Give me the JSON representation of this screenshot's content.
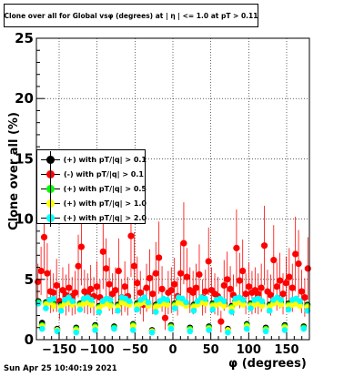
{
  "title": "Clone  over all for Global vsφ (degrees) at | η | <= 1.0 at pT > 0.11",
  "footer": "Sun Apr 25 10:40:19 2021",
  "chart_data": {
    "type": "scatter",
    "title": "Clone  over all for Global vsφ (degrees) at | η | <= 1.0 at pT > 0.11",
    "xlabel": "φ (degrees)",
    "ylabel": "Clone  over all (%)",
    "xlim": [
      -180,
      180
    ],
    "ylim": [
      0,
      25
    ],
    "xticks": [
      -150,
      -100,
      -50,
      0,
      50,
      100,
      150
    ],
    "xtick_labels": [
      "−150",
      "−100",
      "−50",
      "0",
      "50",
      "100",
      "150"
    ],
    "yticks": [
      0,
      5,
      10,
      15,
      20,
      25
    ],
    "ytick_labels": [
      "0",
      "5",
      "10",
      "15",
      "20",
      "25"
    ],
    "grid": true,
    "legend_position": "middle-left",
    "series": [
      {
        "name": "(+) with pT/|q| > 0.1",
        "color": "#000000",
        "values": [
          3.2,
          1.4,
          3.1,
          3.3,
          3.0,
          0.9,
          2.9,
          3.2,
          3.3,
          3.1,
          1.0,
          3.0,
          3.2,
          3.3,
          3.1,
          1.2,
          2.8,
          3.1,
          3.2,
          3.0,
          1.1,
          2.9,
          3.3,
          3.2,
          3.1,
          1.3,
          3.0,
          3.2,
          3.3,
          3.0,
          0.8,
          2.9,
          3.1,
          3.2,
          3.1,
          1.2,
          3.0,
          3.3,
          3.2,
          3.0,
          1.0,
          2.9,
          3.1,
          3.3,
          3.2,
          1.1,
          3.0,
          3.1,
          3.2,
          3.0,
          0.9,
          2.8,
          3.2,
          3.3,
          3.1,
          1.3,
          3.0,
          3.1,
          3.2,
          3.0,
          1.0,
          2.9,
          3.2,
          3.3,
          3.1,
          1.2,
          3.0,
          3.1,
          3.2,
          3.0,
          1.1,
          2.9
        ]
      },
      {
        "name": "(-) with pT/|q| > 0.1",
        "color": "#ff0000",
        "values": [
          4.8,
          5.7,
          8.5,
          5.5,
          4.0,
          3.9,
          4.5,
          3.2,
          4.1,
          3.7,
          4.3,
          3.6,
          3.9,
          6.1,
          7.7,
          4.0,
          3.8,
          4.2,
          3.6,
          4.4,
          3.5,
          7.3,
          5.9,
          4.6,
          3.8,
          4.1,
          5.7,
          3.5,
          4.4,
          3.6,
          8.6,
          6.1,
          4.7,
          3.9,
          2.9,
          4.3,
          5.1,
          3.8,
          5.5,
          6.8,
          4.2,
          1.8,
          3.9,
          4.1,
          4.6,
          3.6,
          5.5,
          8.0,
          5.2,
          4.1,
          3.9,
          4.3,
          5.4,
          3.5,
          4.0,
          6.5,
          4.1,
          3.8,
          3.6,
          1.5,
          4.5,
          5.0,
          4.2,
          3.7,
          7.6,
          4.9,
          5.7,
          3.8,
          4.4,
          3.9,
          4.1,
          3.8,
          4.3,
          7.8,
          4.0,
          3.7,
          6.6,
          4.4,
          4.9,
          3.8,
          4.7,
          5.2,
          4.3,
          7.1,
          6.3,
          4.0,
          3.5,
          5.9
        ]
      },
      {
        "name": "(+) with pT/|q| > 0.5",
        "color": "#00ff00",
        "values": [
          3.1,
          1.2,
          3.0,
          3.2,
          2.9,
          0.8,
          2.8,
          3.1,
          3.2,
          3.0,
          0.9,
          2.9,
          3.1,
          3.2,
          3.0,
          1.1,
          2.7,
          3.0,
          3.1,
          2.9,
          1.0,
          2.8,
          3.2,
          3.1,
          3.0,
          1.2,
          2.9,
          3.1,
          3.2,
          2.9,
          0.7,
          2.8,
          3.0,
          3.1,
          3.0,
          1.1,
          2.9,
          3.2,
          3.1,
          2.9,
          0.9,
          2.8,
          3.0,
          3.2,
          3.1,
          1.0,
          2.9,
          3.0,
          3.1,
          2.9,
          0.8,
          2.7,
          3.1,
          3.2,
          3.0,
          1.2,
          2.9,
          3.0,
          3.1,
          2.9,
          0.9,
          2.8,
          3.1,
          3.2,
          3.0,
          1.1,
          2.9,
          3.0,
          3.1,
          2.9,
          1.0,
          2.8
        ]
      },
      {
        "name": "(+) with pT/|q| > 1.0",
        "color": "#ffff00",
        "values": [
          3.0,
          1.1,
          2.9,
          3.1,
          2.8,
          0.8,
          2.7,
          3.0,
          3.1,
          2.9,
          0.8,
          2.8,
          3.0,
          3.1,
          2.9,
          1.0,
          2.6,
          2.9,
          3.0,
          2.8,
          0.9,
          2.7,
          3.1,
          3.0,
          2.9,
          1.1,
          2.8,
          3.0,
          3.1,
          2.8,
          0.7,
          2.7,
          2.9,
          3.0,
          2.9,
          1.0,
          2.8,
          3.1,
          3.0,
          2.8,
          0.8,
          2.7,
          2.9,
          3.1,
          3.0,
          0.9,
          2.8,
          2.9,
          3.0,
          2.8,
          0.8,
          2.6,
          3.0,
          3.1,
          2.9,
          1.1,
          2.8,
          2.9,
          3.0,
          2.8,
          0.8,
          2.7,
          3.0,
          3.1,
          2.9,
          1.0,
          2.8,
          2.9,
          3.0,
          2.8,
          0.9,
          2.7
        ]
      },
      {
        "name": "(+) with pT/|q| > 2.0",
        "color": "#00ffff",
        "values": [
          3.0,
          0.9,
          2.6,
          3.3,
          3.4,
          0.7,
          2.4,
          3.3,
          3.5,
          3.2,
          0.6,
          2.5,
          3.4,
          3.5,
          3.3,
          0.8,
          2.3,
          3.2,
          3.4,
          3.3,
          0.9,
          2.4,
          3.5,
          3.4,
          3.2,
          0.8,
          2.5,
          3.3,
          3.5,
          3.1,
          0.6,
          2.3,
          3.2,
          3.4,
          3.3,
          0.9,
          2.6,
          3.5,
          3.4,
          3.1,
          0.7,
          2.4,
          3.2,
          3.5,
          3.4,
          0.8,
          2.5,
          3.3,
          3.4,
          3.2,
          0.6,
          2.3,
          3.4,
          3.5,
          3.3,
          0.9,
          2.6,
          3.3,
          3.4,
          3.2,
          0.7,
          2.4,
          3.3,
          3.5,
          3.3,
          0.8,
          2.5,
          3.3,
          3.4,
          3.2,
          0.9,
          2.4
        ]
      }
    ],
    "errors_red": [
      1.5,
      2.0,
      3.0,
      2.5,
      1.8,
      1.6,
      2.2,
      1.5,
      1.9,
      1.7,
      2.0,
      1.6,
      1.8,
      2.6,
      3.2,
      1.8,
      1.7,
      2.0,
      1.6,
      2.1,
      1.5,
      3.1,
      2.5,
      2.2,
      1.7,
      1.9,
      2.7,
      1.5,
      2.1,
      1.6,
      3.4,
      2.8,
      2.2,
      1.8,
      1.4,
      2.0,
      2.4,
      1.7,
      2.6,
      3.0,
      1.9,
      1.0,
      1.8,
      1.9,
      2.2,
      1.6,
      2.6,
      3.4,
      2.4,
      1.9,
      1.8,
      2.0,
      2.5,
      1.5,
      1.8,
      2.8,
      1.9,
      1.7,
      1.6,
      0.9,
      2.1,
      2.3,
      1.9,
      1.7,
      3.2,
      2.3,
      2.6,
      1.7,
      2.0,
      1.8,
      1.9,
      1.7,
      2.0,
      3.3,
      1.8,
      1.7,
      2.9,
      2.0,
      2.3,
      1.7,
      2.2,
      2.4,
      2.0,
      3.1,
      2.8,
      1.8,
      1.6,
      2.6
    ]
  }
}
